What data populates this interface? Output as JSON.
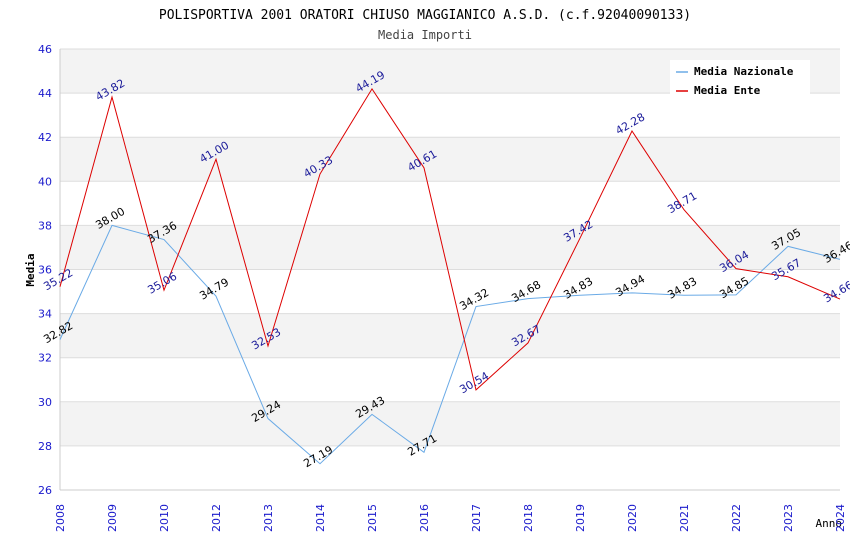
{
  "chart_data": {
    "type": "line",
    "title": "POLISPORTIVA 2001 ORATORI CHIUSO MAGGIANICO A.S.D. (c.f.92040090133)",
    "subtitle": "Media Importi",
    "xlabel": "Anno",
    "ylabel": "Media",
    "ylim": [
      26,
      46
    ],
    "yticks": [
      26,
      28,
      30,
      32,
      34,
      36,
      38,
      40,
      42,
      44,
      46
    ],
    "categories": [
      "2008",
      "2009",
      "2010",
      "2012",
      "2013",
      "2014",
      "2015",
      "2016",
      "2017",
      "2018",
      "2019",
      "2020",
      "2021",
      "2022",
      "2023",
      "2024"
    ],
    "legend_position": "top-right",
    "series": [
      {
        "name": "Media Nazionale",
        "color": "#6aaae6",
        "label_color": "#000000",
        "values": [
          32.82,
          38.0,
          37.36,
          34.79,
          29.24,
          27.19,
          29.43,
          27.71,
          34.32,
          34.68,
          34.83,
          34.94,
          34.83,
          34.85,
          37.05,
          36.46
        ],
        "labels": [
          "32.82",
          "38.00",
          "37.36",
          "34.79",
          "29.24",
          "27.19",
          "29.43",
          "27.71",
          "34.32",
          "34.68",
          "34.83",
          "34.94",
          "34.83",
          "34.85",
          "37.05",
          "36.46"
        ]
      },
      {
        "name": "Media Ente",
        "color": "#dd0000",
        "label_color": "#1a1a99",
        "values": [
          35.22,
          43.82,
          35.06,
          41.0,
          32.53,
          40.33,
          44.19,
          40.61,
          30.54,
          32.67,
          37.42,
          42.28,
          38.71,
          36.04,
          35.67,
          34.66
        ],
        "labels": [
          "35.22",
          "43.82",
          "35.06",
          "41.00",
          "32.53",
          "40.33",
          "44.19",
          "40.61",
          "30.54",
          "32.67",
          "37.42",
          "42.28",
          "38.71",
          "36.04",
          "35.67",
          "34.66"
        ]
      }
    ]
  }
}
